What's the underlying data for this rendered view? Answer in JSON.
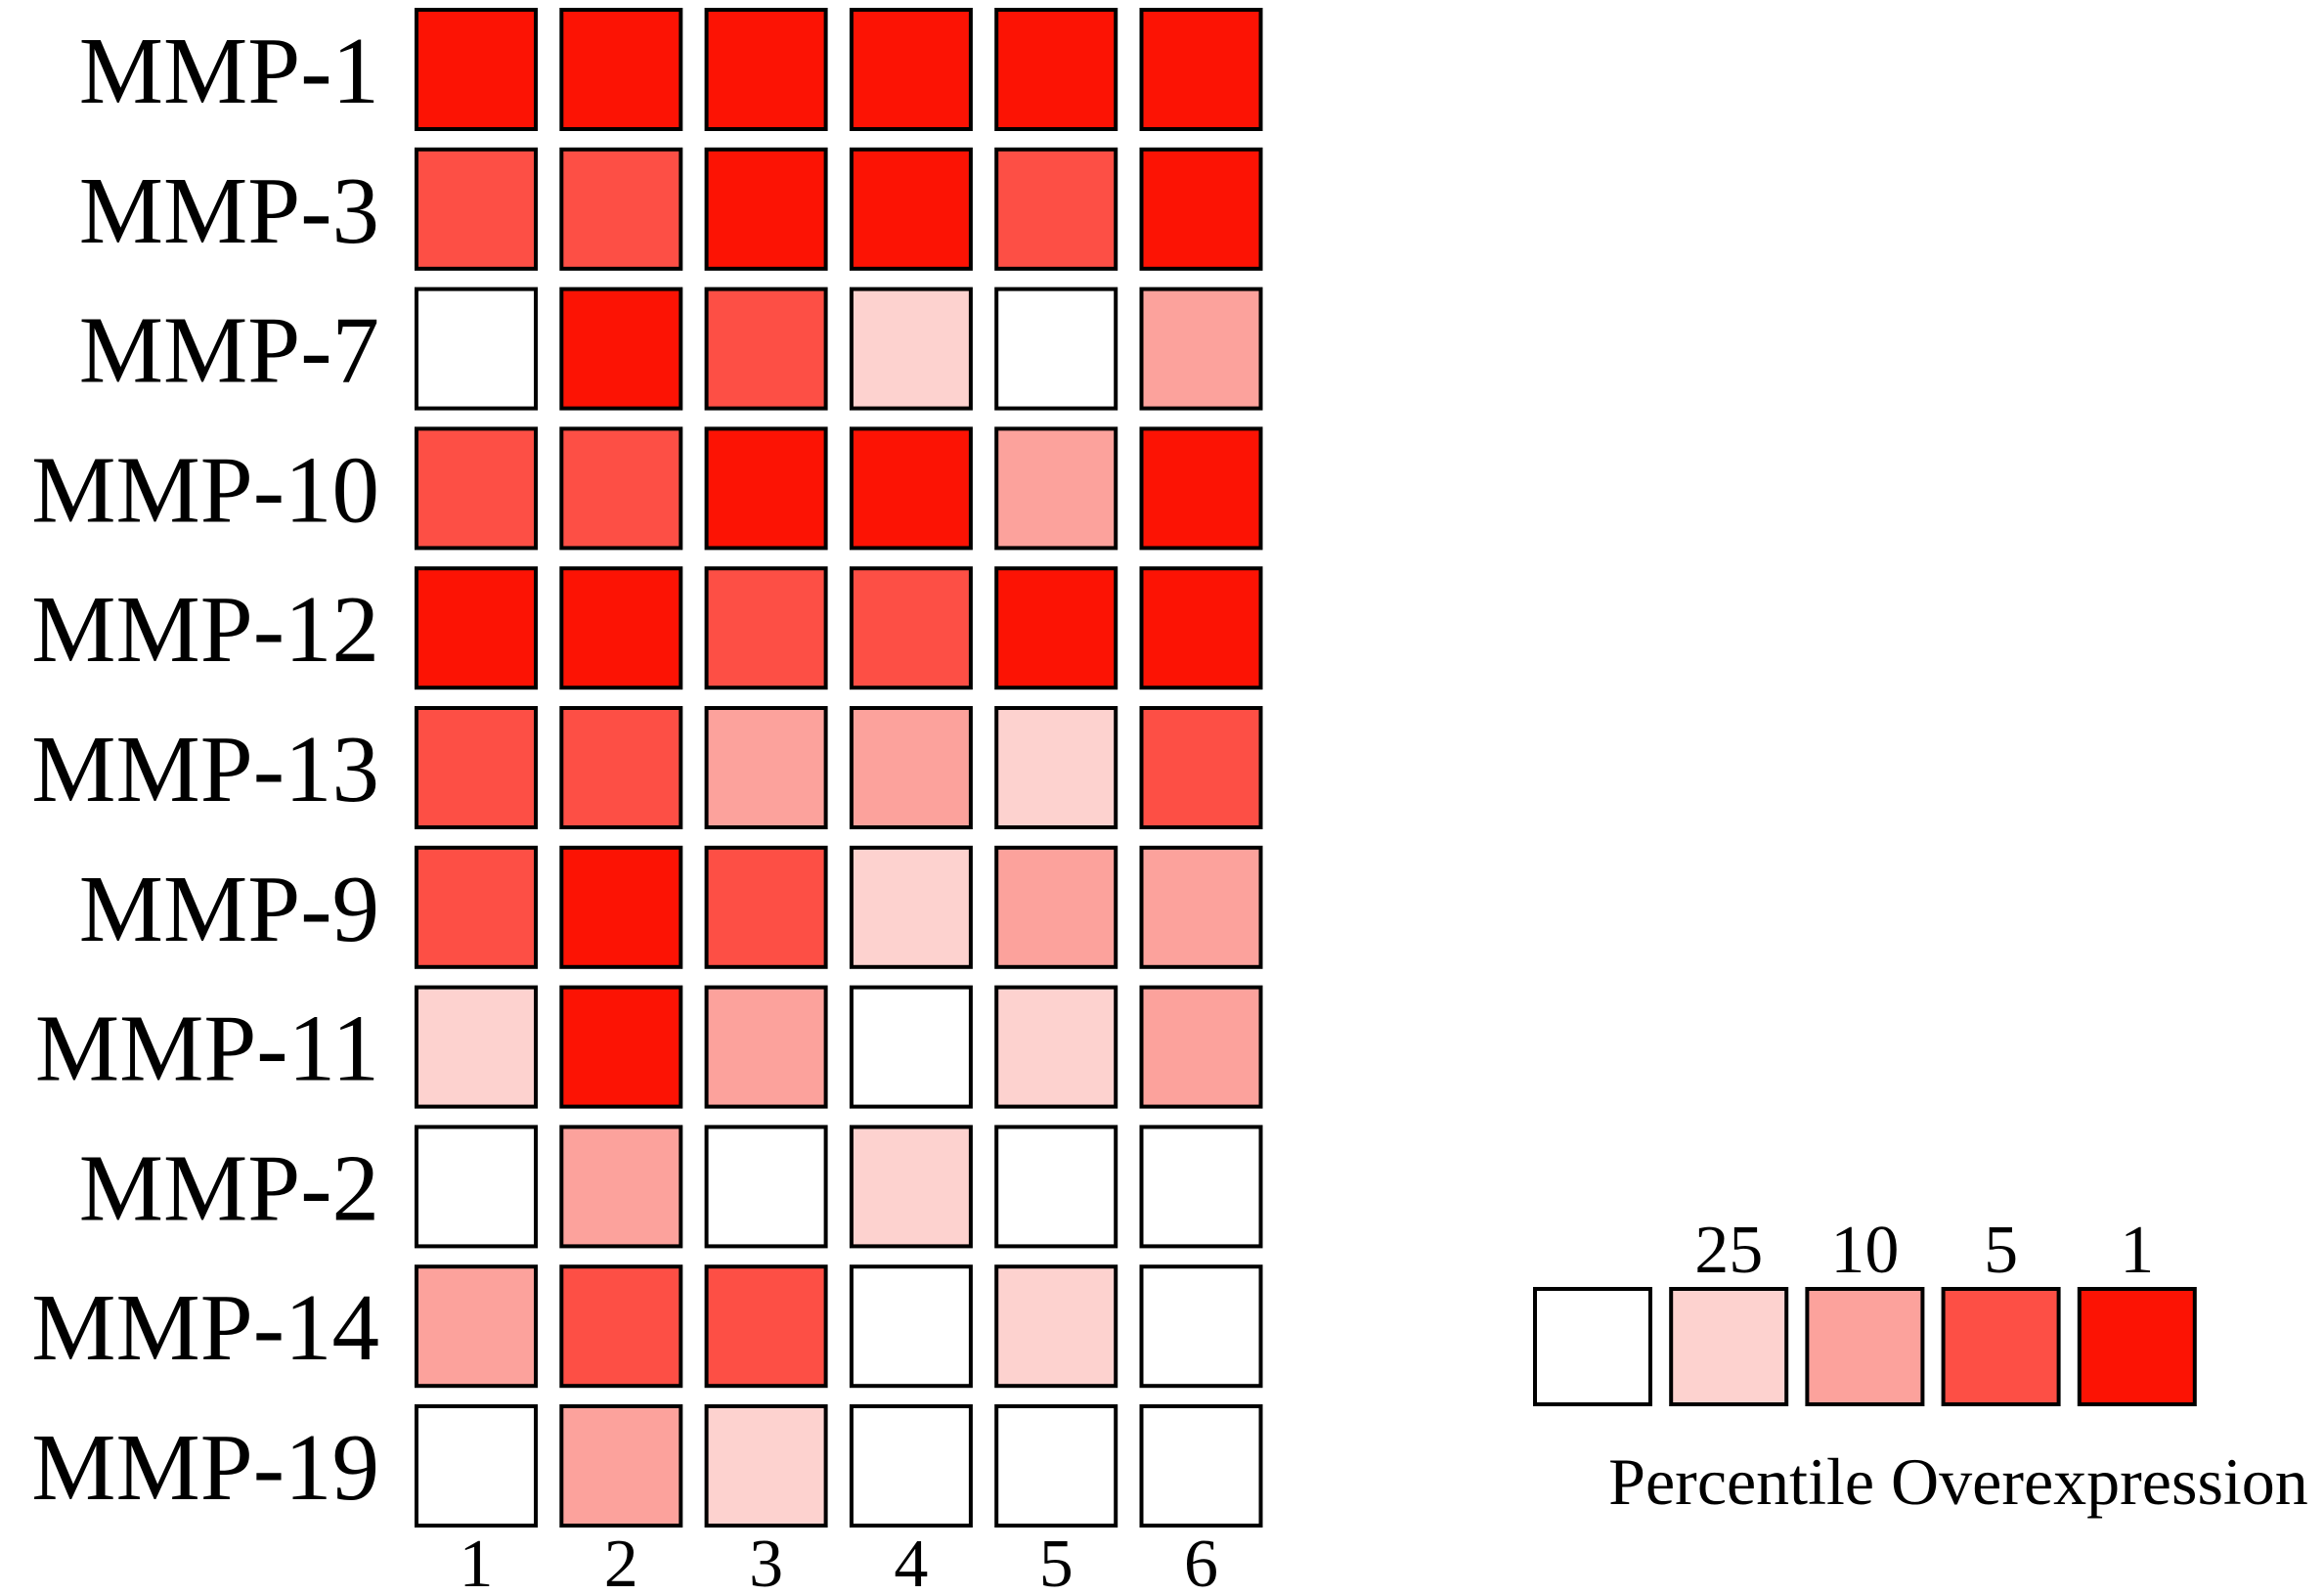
{
  "chart_data": {
    "type": "heatmap",
    "rows": [
      "MMP-1",
      "MMP-3",
      "MMP-7",
      "MMP-10",
      "MMP-12",
      "MMP-13",
      "MMP-9",
      "MMP-11",
      "MMP-2",
      "MMP-14",
      "MMP-19"
    ],
    "columns": [
      "1",
      "2",
      "3",
      "4",
      "5",
      "6"
    ],
    "values": [
      [
        1,
        1,
        1,
        1,
        1,
        1
      ],
      [
        5,
        5,
        1,
        1,
        5,
        1
      ],
      [
        null,
        1,
        5,
        25,
        null,
        10
      ],
      [
        5,
        5,
        1,
        1,
        10,
        1
      ],
      [
        1,
        1,
        5,
        5,
        1,
        1
      ],
      [
        5,
        5,
        10,
        10,
        25,
        5
      ],
      [
        5,
        1,
        5,
        25,
        10,
        10
      ],
      [
        25,
        1,
        10,
        null,
        25,
        10
      ],
      [
        null,
        10,
        null,
        25,
        null,
        null
      ],
      [
        10,
        5,
        5,
        null,
        25,
        null
      ],
      [
        null,
        10,
        25,
        null,
        null,
        null
      ]
    ],
    "color_scale": {
      "none": "#ffffff",
      "25": "#fdd2cf",
      "10": "#fca29c",
      "5": "#fd4f45",
      "1": "#fc1304"
    },
    "legend": {
      "title": "Percentile Overexpression",
      "ticks": [
        "25",
        "10",
        "5",
        "1"
      ],
      "levels": [
        "none",
        "25",
        "10",
        "5",
        "1"
      ],
      "placement": "bottom-right"
    }
  }
}
